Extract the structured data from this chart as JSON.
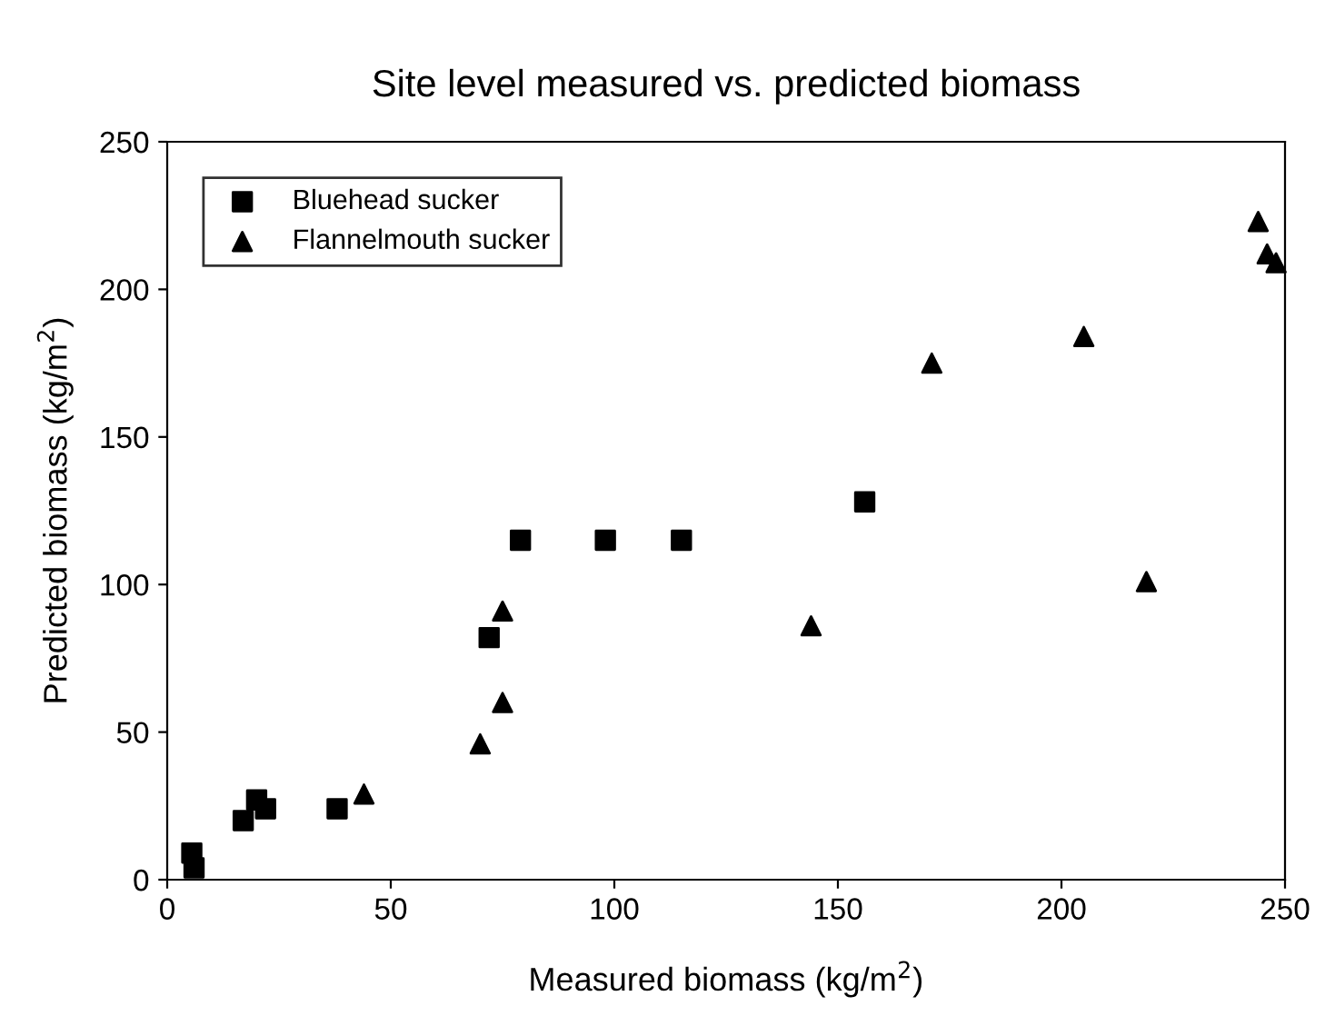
{
  "chart_data": {
    "type": "scatter",
    "title": "Site level measured vs. predicted biomass",
    "xlabel": "Measured biomass (kg/m$^{2}$)",
    "ylabel": "Predicted biomass (kg/m$^{2}$)",
    "series": [
      {
        "name": "Bluehead sucker",
        "color": "#000000",
        "marker": "square",
        "x": [
          5.5,
          6,
          17,
          20,
          22,
          38,
          72,
          79,
          98,
          115,
          156
        ],
        "values": [
          9,
          4,
          20,
          27,
          24,
          24,
          82,
          115,
          115,
          115,
          128
        ]
      },
      {
        "name": "Flannelmouth sucker",
        "color": "#000000",
        "marker": "triangle",
        "x": [
          44,
          70,
          75,
          75,
          144,
          171,
          205,
          219,
          244,
          246,
          248
        ],
        "values": [
          29,
          46,
          60,
          91,
          86,
          175,
          184,
          101,
          223,
          212,
          209
        ]
      }
    ],
    "xlim": [
      0,
      250
    ],
    "ylim": [
      0,
      250
    ],
    "xticks": [
      0,
      50,
      100,
      150,
      200,
      250
    ],
    "yticks": [
      0,
      50,
      100,
      150,
      200,
      250
    ],
    "grid": false,
    "legend": "top left"
  }
}
